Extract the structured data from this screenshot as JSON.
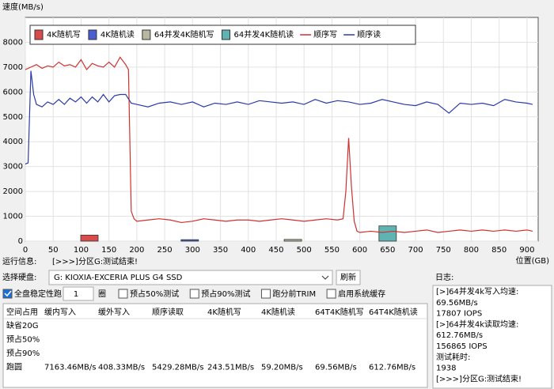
{
  "chart_data": {
    "type": "line",
    "ylabel": "速度(MB/s)",
    "xlabel": "位置(GB)",
    "xlim": [
      0,
      920
    ],
    "xticks": [
      0,
      50,
      100,
      150,
      200,
      250,
      300,
      350,
      400,
      450,
      500,
      550,
      600,
      650,
      700,
      750,
      800,
      850,
      900
    ],
    "ylim": [
      0,
      9000
    ],
    "yticks": [
      0,
      1000,
      2000,
      3000,
      4000,
      5000,
      6000,
      7000,
      8000
    ],
    "grid": true,
    "series": [
      {
        "name": "4K随机写",
        "type": "bar",
        "color": "#d94a4a",
        "x": [
          115
        ],
        "values": [
          243.51
        ]
      },
      {
        "name": "4K随机读",
        "type": "bar",
        "color": "#4a5fd1",
        "x": [
          295
        ],
        "values": [
          59.2
        ]
      },
      {
        "name": "64并发4K随机写",
        "type": "bar",
        "color": "#b8b8a0",
        "x": [
          480
        ],
        "values": [
          69.56
        ]
      },
      {
        "name": "64并发4K随机读",
        "type": "bar",
        "color": "#5fb3b3",
        "x": [
          650
        ],
        "values": [
          612.76
        ]
      },
      {
        "name": "顺序写",
        "type": "line",
        "color": "#d03030",
        "x": [
          0,
          10,
          20,
          30,
          40,
          50,
          60,
          70,
          80,
          90,
          100,
          110,
          120,
          130,
          140,
          150,
          160,
          170,
          180,
          185,
          190,
          195,
          200,
          220,
          240,
          260,
          280,
          300,
          320,
          340,
          360,
          380,
          400,
          420,
          440,
          460,
          480,
          500,
          520,
          540,
          560,
          570,
          575,
          580,
          585,
          590,
          595,
          600,
          620,
          640,
          660,
          680,
          700,
          720,
          740,
          760,
          780,
          800,
          820,
          840,
          860,
          880,
          900,
          910
        ],
        "values": [
          6900,
          7000,
          7100,
          6950,
          7050,
          7000,
          7200,
          7050,
          7100,
          7000,
          7300,
          6900,
          7150,
          7050,
          7000,
          7200,
          7000,
          7400,
          7100,
          6900,
          1200,
          900,
          800,
          850,
          900,
          850,
          750,
          800,
          900,
          850,
          800,
          850,
          850,
          800,
          850,
          900,
          850,
          800,
          850,
          900,
          850,
          900,
          2000,
          4150,
          2200,
          800,
          400,
          350,
          400,
          350,
          400,
          350,
          400,
          450,
          350,
          400,
          450,
          400,
          450,
          400,
          450,
          400,
          450,
          400
        ]
      },
      {
        "name": "顺序读",
        "type": "line",
        "color": "#2a3aa8",
        "x": [
          0,
          5,
          10,
          15,
          20,
          30,
          40,
          50,
          60,
          70,
          80,
          90,
          100,
          110,
          120,
          130,
          140,
          150,
          160,
          170,
          180,
          190,
          200,
          220,
          240,
          260,
          280,
          300,
          320,
          340,
          360,
          380,
          400,
          420,
          440,
          460,
          480,
          500,
          520,
          540,
          560,
          580,
          600,
          620,
          640,
          660,
          680,
          700,
          720,
          740,
          760,
          780,
          800,
          820,
          840,
          860,
          880,
          900,
          910
        ],
        "values": [
          3100,
          3150,
          6850,
          5900,
          5500,
          5400,
          5600,
          5500,
          5700,
          5500,
          5750,
          5600,
          5800,
          5550,
          5800,
          5600,
          5900,
          5600,
          5850,
          5900,
          5900,
          5550,
          5500,
          5400,
          5550,
          5600,
          5500,
          5600,
          5400,
          5550,
          5500,
          5600,
          5500,
          5650,
          5600,
          5550,
          5600,
          5500,
          5700,
          5550,
          5650,
          5600,
          5500,
          5550,
          5700,
          5600,
          5500,
          5450,
          5600,
          5500,
          5150,
          5550,
          5500,
          5550,
          5450,
          5700,
          5600,
          5550,
          5500
        ]
      }
    ]
  },
  "run_info": {
    "label": "运行信息:",
    "text": "[>>>]分区G:测试结束!"
  },
  "disk": {
    "label": "选择硬盘:",
    "selected": "G: KIOXIA-EXCERIA PLUS G4 SSD",
    "button": "刷新"
  },
  "full_disk": {
    "label": "全盘稳定性跑",
    "checked": true,
    "loops": 1,
    "unit": "圈"
  },
  "options": [
    {
      "label": "预占50%测试",
      "checked": false
    },
    {
      "label": "预占90%测试",
      "checked": false
    },
    {
      "label": "跑分前TRIM",
      "checked": false
    },
    {
      "label": "启用系统缓存",
      "checked": false
    }
  ],
  "table": {
    "headers": [
      "空间占用",
      "缓内写入",
      "缓外写入",
      "顺序读取",
      "4K随机写",
      "4K随机读",
      "64T4K随机写",
      "64T4K随机读"
    ],
    "rows": [
      [
        "缺省20G"
      ],
      [
        "预占50%"
      ],
      [
        "预占90%"
      ],
      [
        "跑圆",
        "7163.46MB/s",
        "408.33MB/s",
        "5429.28MB/s",
        "243.51MB/s",
        "59.20MB/s",
        "69.56MB/s",
        "612.76MB/s"
      ]
    ]
  },
  "log": {
    "label": "日志:",
    "lines": [
      "[>]64并发4k写入均速:",
      "69.56MB/s",
      "17807 IOPS",
      "[>]64并发4k读取均速:",
      "612.76MB/s",
      "156865 IOPS",
      "测试耗时:",
      "1938",
      "[>>>]分区G:测试结束!"
    ]
  }
}
